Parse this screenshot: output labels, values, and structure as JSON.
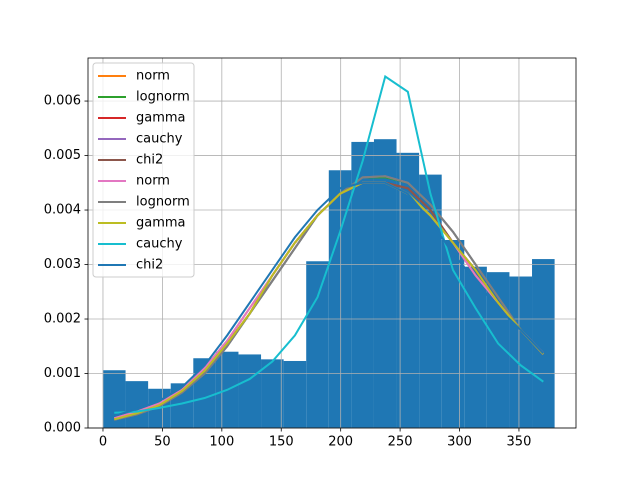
{
  "chart_data": {
    "type": "histogram",
    "bins": [
      0,
      19,
      38,
      57,
      76,
      95,
      114,
      133,
      152,
      171,
      190,
      209,
      228,
      247,
      266,
      285,
      304,
      323,
      342,
      361,
      380
    ],
    "counts": [
      0.00106,
      0.00086,
      0.00072,
      0.00082,
      0.00128,
      0.0014,
      0.00135,
      0.00126,
      0.00123,
      0.00306,
      0.00473,
      0.00525,
      0.0053,
      0.00505,
      0.00465,
      0.00345,
      0.00296,
      0.00286,
      0.00278,
      0.0031
    ],
    "color": "#1f77b4",
    "x": [
      9.5,
      28.5,
      47.5,
      66.5,
      85.5,
      104.5,
      123.5,
      142.5,
      161.5,
      180.5,
      199.5,
      218.5,
      237.5,
      256.5,
      275.5,
      294.5,
      313.5,
      332.5,
      351.5,
      370.5
    ],
    "series": [
      {
        "name": "norm",
        "color": "#ff7f0e",
        "values": [
          0.00018,
          0.0003,
          0.00045,
          0.0007,
          0.0011,
          0.0016,
          0.0022,
          0.0028,
          0.0034,
          0.0039,
          0.0043,
          0.0045,
          0.0045,
          0.0043,
          0.0039,
          0.0034,
          0.0028,
          0.0023,
          0.0018,
          0.00137
        ]
      },
      {
        "name": "lognorm",
        "color": "#2ca02c",
        "values": [
          0.00015,
          0.00025,
          0.0004,
          0.00065,
          0.001,
          0.0015,
          0.0021,
          0.0027,
          0.0033,
          0.0039,
          0.0043,
          0.0046,
          0.0046,
          0.0045,
          0.0041,
          0.0036,
          0.003,
          0.0024,
          0.0018,
          0.00135
        ]
      },
      {
        "name": "gamma",
        "color": "#d62728",
        "values": [
          0.00016,
          0.00027,
          0.00042,
          0.00068,
          0.00105,
          0.00155,
          0.0021,
          0.0028,
          0.0034,
          0.0039,
          0.0043,
          0.0045,
          0.0045,
          0.0044,
          0.004,
          0.0034,
          0.0029,
          0.0023,
          0.0018,
          0.00136
        ]
      },
      {
        "name": "cauchy",
        "color": "#9467bd",
        "values": [
          0.00015,
          0.00025,
          0.0004,
          0.00065,
          0.001,
          0.0015,
          0.0021,
          0.0027,
          0.0033,
          0.0039,
          0.0043,
          0.0046,
          0.00462,
          0.0045,
          0.0041,
          0.0036,
          0.003,
          0.0024,
          0.0018,
          0.00135
        ]
      },
      {
        "name": "chi2",
        "color": "#8c564b",
        "values": [
          0.00016,
          0.00027,
          0.00042,
          0.00068,
          0.00105,
          0.00155,
          0.0021,
          0.0028,
          0.0034,
          0.0039,
          0.0043,
          0.0045,
          0.0045,
          0.0044,
          0.004,
          0.0034,
          0.0029,
          0.0023,
          0.0018,
          0.00136
        ]
      },
      {
        "name": "norm",
        "color": "#e377c2",
        "values": [
          0.00018,
          0.0003,
          0.00045,
          0.0007,
          0.0011,
          0.0016,
          0.0022,
          0.0028,
          0.0034,
          0.0039,
          0.0043,
          0.0045,
          0.0045,
          0.0043,
          0.0039,
          0.0034,
          0.0028,
          0.0023,
          0.0018,
          0.00137
        ]
      },
      {
        "name": "lognorm",
        "color": "#7f7f7f",
        "values": [
          0.00015,
          0.00025,
          0.0004,
          0.00065,
          0.001,
          0.0015,
          0.0021,
          0.0027,
          0.0033,
          0.0039,
          0.0043,
          0.0046,
          0.00462,
          0.0045,
          0.0041,
          0.0036,
          0.003,
          0.0024,
          0.0018,
          0.00135
        ]
      },
      {
        "name": "gamma",
        "color": "#bcbd22",
        "values": [
          0.00016,
          0.00027,
          0.00042,
          0.00068,
          0.00105,
          0.00155,
          0.0021,
          0.0028,
          0.0034,
          0.0039,
          0.0043,
          0.0045,
          0.0045,
          0.0043,
          0.0039,
          0.0034,
          0.0029,
          0.0023,
          0.0018,
          0.00136
        ]
      },
      {
        "name": "cauchy",
        "color": "#17becf",
        "values": [
          0.00028,
          0.0003,
          0.00037,
          0.00045,
          0.00055,
          0.0007,
          0.0009,
          0.00122,
          0.0017,
          0.0024,
          0.0036,
          0.0049,
          0.00645,
          0.00617,
          0.0043,
          0.0029,
          0.0022,
          0.00155,
          0.00115,
          0.00085
        ]
      },
      {
        "name": "chi2",
        "color": "#1f77b4",
        "values": [
          0.00022,
          0.00035,
          0.0005,
          0.00075,
          0.00115,
          0.0017,
          0.0023,
          0.0029,
          0.0035,
          0.004,
          0.0044,
          0.0045,
          0.0045,
          0.0043,
          0.0038,
          0.0032,
          0.0027,
          0.0022,
          0.0018,
          0.00137
        ]
      }
    ],
    "xlim": [
      -12.6,
      398
    ],
    "ylim": [
      0,
      0.00679
    ],
    "xticks": [
      0,
      50,
      100,
      150,
      200,
      250,
      300,
      350
    ],
    "yticks": [
      {
        "value": 0,
        "label": "0.000"
      },
      {
        "value": 0.001,
        "label": "0.001"
      },
      {
        "value": 0.002,
        "label": "0.002"
      },
      {
        "value": 0.003,
        "label": "0.003"
      },
      {
        "value": 0.004,
        "label": "0.004"
      },
      {
        "value": 0.005,
        "label": "0.005"
      },
      {
        "value": 0.006,
        "label": "0.006"
      }
    ],
    "grid": true,
    "legend": "upper left"
  }
}
